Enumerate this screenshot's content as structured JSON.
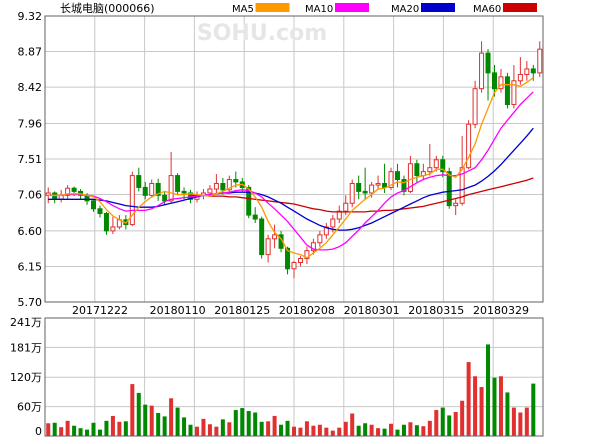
{
  "header": {
    "title": "长城电脑(000066)",
    "watermark": "SOHU.com",
    "legend": [
      {
        "label": "MA5",
        "color": "#ff9900"
      },
      {
        "label": "MA10",
        "color": "#ff00ff"
      },
      {
        "label": "MA20",
        "color": "#0000cc"
      },
      {
        "label": "MA60",
        "color": "#cc0000"
      }
    ]
  },
  "colors": {
    "up": "#e03030",
    "down": "#008800",
    "grid": "#c8c8c8",
    "frame": "#606060"
  },
  "chart_data": {
    "type": "candlestick",
    "price_axis": {
      "ylim": [
        5.7,
        9.32
      ],
      "ticks": [
        "9.32",
        "8.87",
        "8.42",
        "7.96",
        "7.51",
        "7.06",
        "6.60",
        "6.15",
        "5.70"
      ]
    },
    "volume_axis": {
      "ylim": [
        0,
        241
      ],
      "unit": "万",
      "ticks": [
        "241万",
        "181万",
        "120万",
        "60万",
        "0"
      ]
    },
    "date_labels": [
      "20171222",
      "20180110",
      "20180125",
      "20180208",
      "20180301",
      "20180315",
      "20180329"
    ],
    "date_label_index": [
      8,
      20,
      30,
      40,
      50,
      60,
      70
    ],
    "candles": [
      [
        7.05,
        7.08,
        6.95,
        7.15
      ],
      [
        7.08,
        7.0,
        6.95,
        7.1
      ],
      [
        7.0,
        7.05,
        6.96,
        7.12
      ],
      [
        7.05,
        7.14,
        7.0,
        7.18
      ],
      [
        7.14,
        7.1,
        7.04,
        7.16
      ],
      [
        7.1,
        7.05,
        7.0,
        7.13
      ],
      [
        7.05,
        6.98,
        6.93,
        7.08
      ],
      [
        6.98,
        6.88,
        6.84,
        7.0
      ],
      [
        6.88,
        6.82,
        6.77,
        6.92
      ],
      [
        6.82,
        6.6,
        6.55,
        6.84
      ],
      [
        6.6,
        6.65,
        6.56,
        6.78
      ],
      [
        6.65,
        6.74,
        6.62,
        6.8
      ],
      [
        6.74,
        6.68,
        6.62,
        6.8
      ],
      [
        6.68,
        7.3,
        6.66,
        7.35
      ],
      [
        7.3,
        7.15,
        7.1,
        7.4
      ],
      [
        7.15,
        7.05,
        7.0,
        7.22
      ],
      [
        7.05,
        7.2,
        7.02,
        7.25
      ],
      [
        7.2,
        7.05,
        6.98,
        7.26
      ],
      [
        7.05,
        6.98,
        6.92,
        7.1
      ],
      [
        6.98,
        7.3,
        6.96,
        7.6
      ],
      [
        7.3,
        7.1,
        7.05,
        7.33
      ],
      [
        7.1,
        7.08,
        7.0,
        7.15
      ],
      [
        7.08,
        7.0,
        6.95,
        7.12
      ],
      [
        7.0,
        7.05,
        6.96,
        7.1
      ],
      [
        7.05,
        7.08,
        7.0,
        7.13
      ],
      [
        7.08,
        7.13,
        7.03,
        7.18
      ],
      [
        7.13,
        7.2,
        7.08,
        7.32
      ],
      [
        7.2,
        7.12,
        7.06,
        7.27
      ],
      [
        7.12,
        7.25,
        7.08,
        7.3
      ],
      [
        7.25,
        7.22,
        7.15,
        7.35
      ],
      [
        7.22,
        7.15,
        7.1,
        7.27
      ],
      [
        7.15,
        6.8,
        6.76,
        7.18
      ],
      [
        6.8,
        6.75,
        6.7,
        6.9
      ],
      [
        6.75,
        6.3,
        6.25,
        6.78
      ],
      [
        6.3,
        6.5,
        6.2,
        6.55
      ],
      [
        6.5,
        6.55,
        6.38,
        6.68
      ],
      [
        6.55,
        6.38,
        6.33,
        6.6
      ],
      [
        6.38,
        6.12,
        6.05,
        6.4
      ],
      [
        6.12,
        6.2,
        6.0,
        6.22
      ],
      [
        6.2,
        6.25,
        6.15,
        6.28
      ],
      [
        6.25,
        6.35,
        6.18,
        6.4
      ],
      [
        6.35,
        6.45,
        6.3,
        6.5
      ],
      [
        6.45,
        6.55,
        6.4,
        6.6
      ],
      [
        6.55,
        6.65,
        6.5,
        6.7
      ],
      [
        6.65,
        6.75,
        6.58,
        6.8
      ],
      [
        6.75,
        6.85,
        6.7,
        6.92
      ],
      [
        6.85,
        6.95,
        6.8,
        7.05
      ],
      [
        6.95,
        7.2,
        6.9,
        7.25
      ],
      [
        7.2,
        7.1,
        7.0,
        7.3
      ],
      [
        7.1,
        7.08,
        7.0,
        7.4
      ],
      [
        7.08,
        7.18,
        7.02,
        7.22
      ],
      [
        7.18,
        7.2,
        7.12,
        7.3
      ],
      [
        7.2,
        7.15,
        7.08,
        7.45
      ],
      [
        7.15,
        7.35,
        7.12,
        7.4
      ],
      [
        7.35,
        7.25,
        7.15,
        7.45
      ],
      [
        7.25,
        7.1,
        7.05,
        7.3
      ],
      [
        7.1,
        7.45,
        7.08,
        7.55
      ],
      [
        7.45,
        7.3,
        7.2,
        7.5
      ],
      [
        7.3,
        7.35,
        7.25,
        7.45
      ],
      [
        7.35,
        7.4,
        7.3,
        7.7
      ],
      [
        7.4,
        7.5,
        7.35,
        7.55
      ],
      [
        7.5,
        7.35,
        7.28,
        7.55
      ],
      [
        7.35,
        6.92,
        6.88,
        7.4
      ],
      [
        6.92,
        6.95,
        6.8,
        7.0
      ],
      [
        6.95,
        7.4,
        6.92,
        7.8
      ],
      [
        7.4,
        7.95,
        7.38,
        8.0
      ],
      [
        7.95,
        8.4,
        7.9,
        8.5
      ],
      [
        8.4,
        8.85,
        8.35,
        9.0
      ],
      [
        8.85,
        8.6,
        8.25,
        8.9
      ],
      [
        8.6,
        8.4,
        8.3,
        8.7
      ],
      [
        8.4,
        8.55,
        8.35,
        8.65
      ],
      [
        8.55,
        8.2,
        8.15,
        8.6
      ],
      [
        8.2,
        8.5,
        8.15,
        8.7
      ],
      [
        8.5,
        8.58,
        8.45,
        8.8
      ],
      [
        8.58,
        8.65,
        8.5,
        8.75
      ],
      [
        8.65,
        8.6,
        8.5,
        8.7
      ],
      [
        8.6,
        8.9,
        8.55,
        9.0
      ]
    ],
    "ma5": [
      7.05,
      7.05,
      7.05,
      7.07,
      7.07,
      7.07,
      7.05,
      7.03,
      6.97,
      6.87,
      6.79,
      6.74,
      6.7,
      6.8,
      6.9,
      6.97,
      7.03,
      7.07,
      7.1,
      7.08,
      7.06,
      7.06,
      7.07,
      7.06,
      7.05,
      7.04,
      7.07,
      7.1,
      7.14,
      7.18,
      7.19,
      7.13,
      7.03,
      6.9,
      6.72,
      6.58,
      6.5,
      6.35,
      6.32,
      6.3,
      6.26,
      6.32,
      6.38,
      6.45,
      6.55,
      6.65,
      6.75,
      6.86,
      6.93,
      7.0,
      7.06,
      7.13,
      7.14,
      7.18,
      7.22,
      7.21,
      7.25,
      7.28,
      7.3,
      7.32,
      7.38,
      7.38,
      7.31,
      7.28,
      7.38,
      7.53,
      7.7,
      7.95,
      8.15,
      8.35,
      8.45,
      8.45,
      8.45,
      8.43,
      8.48,
      8.54
    ],
    "ma10": [
      7.05,
      7.05,
      7.05,
      7.06,
      7.06,
      7.06,
      7.05,
      7.04,
      7.01,
      6.97,
      6.92,
      6.88,
      6.85,
      6.86,
      6.86,
      6.86,
      6.88,
      6.92,
      6.97,
      7.0,
      7.01,
      7.02,
      7.03,
      7.04,
      7.05,
      7.06,
      7.07,
      7.08,
      7.09,
      7.11,
      7.12,
      7.11,
      7.08,
      7.03,
      6.95,
      6.88,
      6.8,
      6.72,
      6.62,
      6.52,
      6.42,
      6.37,
      6.36,
      6.36,
      6.37,
      6.4,
      6.45,
      6.53,
      6.61,
      6.7,
      6.78,
      6.86,
      6.95,
      7.03,
      7.08,
      7.11,
      7.16,
      7.21,
      7.25,
      7.28,
      7.3,
      7.31,
      7.3,
      7.3,
      7.32,
      7.36,
      7.4,
      7.5,
      7.62,
      7.76,
      7.9,
      8.0,
      8.1,
      8.2,
      8.28,
      8.36
    ],
    "ma20": [
      7.0,
      7.0,
      7.0,
      7.0,
      7.0,
      7.0,
      7.0,
      7.0,
      6.99,
      6.98,
      6.96,
      6.94,
      6.92,
      6.91,
      6.9,
      6.9,
      6.9,
      6.91,
      6.93,
      6.95,
      6.97,
      6.99,
      7.01,
      7.03,
      7.05,
      7.06,
      7.07,
      7.08,
      7.08,
      7.09,
      7.09,
      7.09,
      7.08,
      7.06,
      7.03,
      6.99,
      6.95,
      6.9,
      6.85,
      6.8,
      6.75,
      6.71,
      6.67,
      6.64,
      6.62,
      6.61,
      6.61,
      6.62,
      6.64,
      6.67,
      6.7,
      6.74,
      6.78,
      6.82,
      6.86,
      6.9,
      6.94,
      6.98,
      7.02,
      7.05,
      7.07,
      7.09,
      7.1,
      7.11,
      7.12,
      7.15,
      7.18,
      7.23,
      7.29,
      7.36,
      7.44,
      7.53,
      7.62,
      7.71,
      7.8,
      7.9
    ],
    "ma60": [
      null,
      null,
      null,
      null,
      null,
      null,
      null,
      null,
      null,
      null,
      null,
      null,
      null,
      null,
      null,
      null,
      null,
      null,
      null,
      null,
      null,
      null,
      7.05,
      7.05,
      7.05,
      7.04,
      7.04,
      7.04,
      7.03,
      7.03,
      7.02,
      7.01,
      7.0,
      6.99,
      6.98,
      6.97,
      6.96,
      6.95,
      6.94,
      6.92,
      6.9,
      6.88,
      6.87,
      6.85,
      6.84,
      6.84,
      6.84,
      6.84,
      6.84,
      6.84,
      6.85,
      6.85,
      6.86,
      6.86,
      6.87,
      6.88,
      6.89,
      6.9,
      6.91,
      6.93,
      6.95,
      6.97,
      6.99,
      7.01,
      7.03,
      7.06,
      7.08,
      7.1,
      7.12,
      7.14,
      7.16,
      7.18,
      7.2,
      7.22,
      7.24,
      7.27
    ],
    "volume": [
      26,
      27,
      18,
      31,
      21,
      16,
      13,
      27,
      13,
      31,
      41,
      29,
      30,
      106,
      88,
      64,
      62,
      47,
      40,
      77,
      58,
      38,
      23,
      19,
      35,
      24,
      19,
      34,
      28,
      53,
      57,
      51,
      48,
      29,
      30,
      41,
      23,
      31,
      19,
      17,
      30,
      21,
      23,
      17,
      11,
      17,
      29,
      46,
      21,
      26,
      23,
      16,
      15,
      25,
      13,
      23,
      28,
      22,
      20,
      31,
      53,
      58,
      42,
      49,
      72,
      151,
      122,
      100,
      187,
      119,
      122,
      89,
      58,
      48,
      58,
      107
    ]
  }
}
